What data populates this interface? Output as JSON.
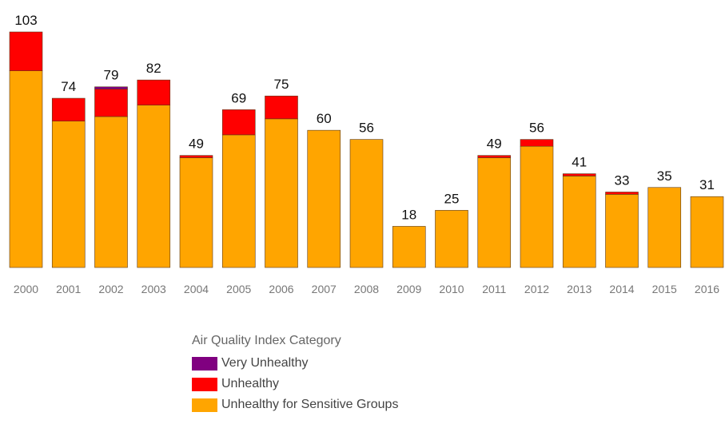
{
  "chart_data": {
    "type": "bar",
    "stacked": true,
    "categories": [
      "2000",
      "2001",
      "2002",
      "2003",
      "2004",
      "2005",
      "2006",
      "2007",
      "2008",
      "2009",
      "2010",
      "2011",
      "2012",
      "2013",
      "2014",
      "2015",
      "2016"
    ],
    "series": [
      {
        "name": "Unhealthy for Sensitive Groups",
        "color": "#FFA500",
        "values": [
          86,
          64,
          66,
          71,
          48,
          58,
          65,
          60,
          56,
          18,
          25,
          48,
          53,
          40,
          32,
          35,
          31
        ]
      },
      {
        "name": "Unhealthy",
        "color": "#FF0000",
        "values": [
          17,
          10,
          12,
          11,
          1,
          11,
          10,
          0,
          0,
          0,
          0,
          1,
          3,
          1,
          1,
          0,
          0
        ]
      },
      {
        "name": "Very Unhealthy",
        "color": "#800080",
        "values": [
          0,
          0,
          1,
          0,
          0,
          0,
          0,
          0,
          0,
          0,
          0,
          0,
          0,
          0,
          0,
          0,
          0
        ]
      }
    ],
    "totals": [
      103,
      74,
      79,
      82,
      49,
      69,
      75,
      60,
      56,
      18,
      25,
      49,
      56,
      41,
      33,
      35,
      31
    ],
    "ylim": [
      0,
      103
    ],
    "grid": false,
    "legend_placement": "bottom",
    "legend_title": "Air Quality Index Category",
    "legend_entries": [
      {
        "label": "Very Unhealthy",
        "color": "#800080"
      },
      {
        "label": "Unhealthy",
        "color": "#FF0000"
      },
      {
        "label": "Unhealthy for Sensitive Groups",
        "color": "#FFA500"
      }
    ]
  }
}
